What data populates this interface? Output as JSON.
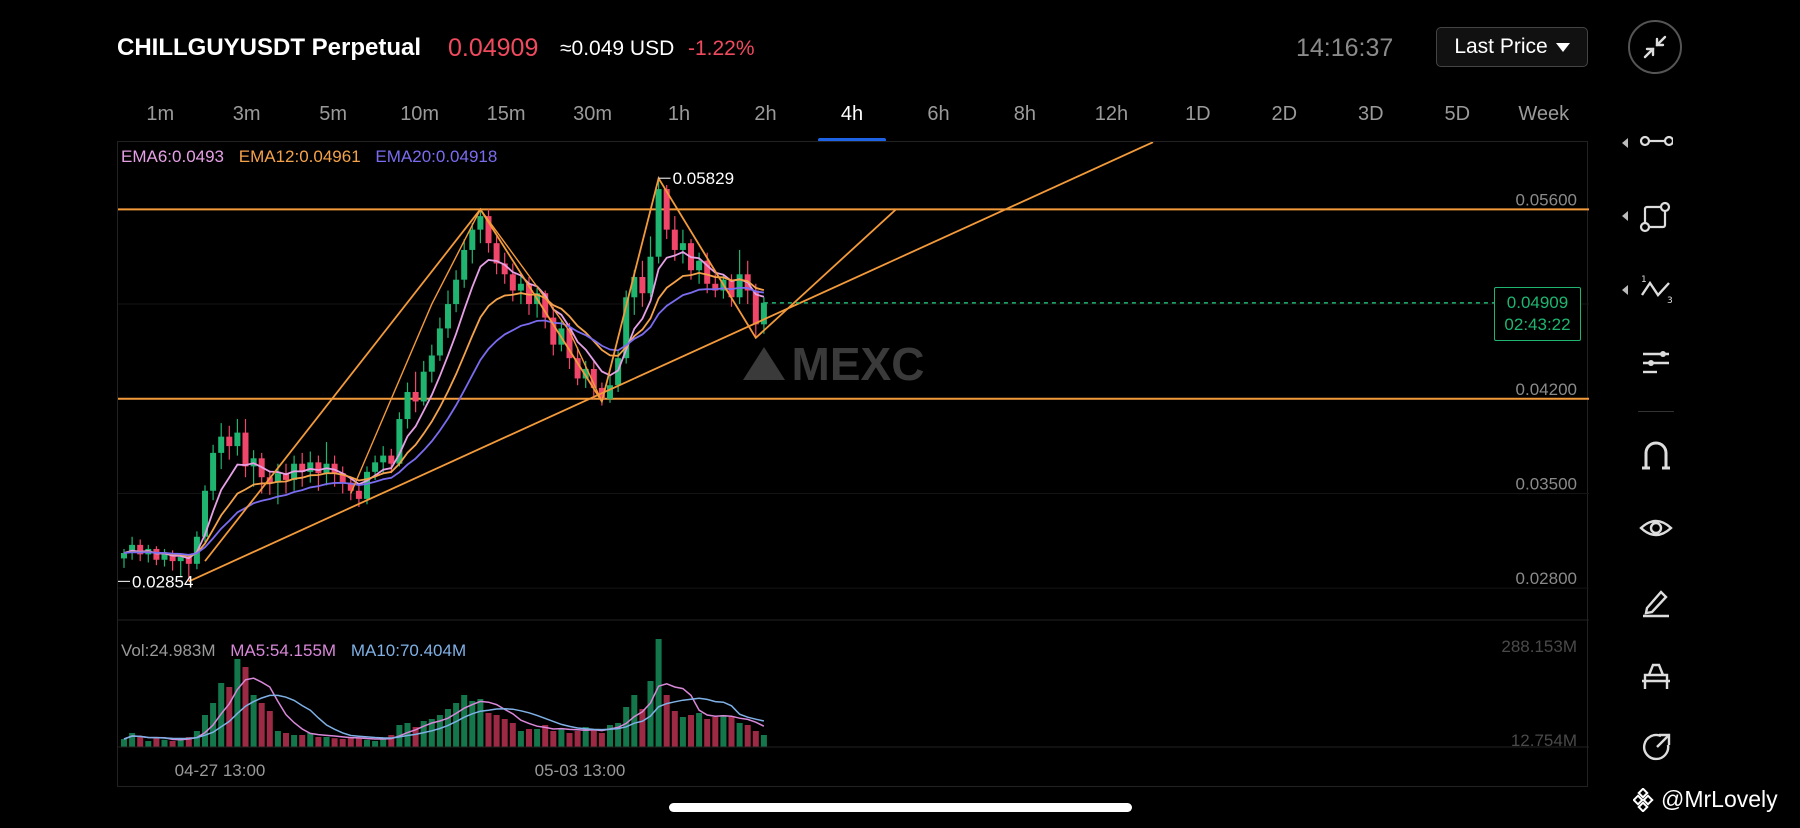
{
  "header": {
    "symbol_title": "CHILLGUYUSDT Perpetual",
    "last_price": "0.04909",
    "usd_approx": "≈0.049 USD",
    "change_pct": "-1.22%",
    "clock": "14:16:37",
    "price_type_label": "Last Price",
    "collapse_icon": "collapse-arrows-icon"
  },
  "timeframes": [
    "1m",
    "3m",
    "5m",
    "10m",
    "15m",
    "30m",
    "1h",
    "2h",
    "4h",
    "6h",
    "8h",
    "12h",
    "1D",
    "2D",
    "3D",
    "5D",
    "Week"
  ],
  "active_timeframe": "4h",
  "indicators": {
    "ema6": "EMA6:0.0493",
    "ema12": "EMA12:0.04961",
    "ema20": "EMA20:0.04918",
    "vol": "Vol:24.983M",
    "ma5": "MA5:54.155M",
    "ma10": "MA10:70.404M"
  },
  "colors": {
    "up": "#1fb571",
    "down": "#f0466a",
    "ema6": "#e6a0e6",
    "ema12": "#f5a34b",
    "ema20": "#7a6cf0",
    "drawing": "#f39a3a",
    "price_line": "#1fb571",
    "ma5": "#d988d9",
    "ma10": "#7fb1e6"
  },
  "chart_data": {
    "type": "candlestick",
    "price_axis_ticks": [
      "0.05600",
      "0.04200",
      "0.03500",
      "0.02800"
    ],
    "time_axis_ticks": [
      "04-27 13:00",
      "05-03 13:00"
    ],
    "high_marker": "0.05829",
    "low_marker": "0.02854",
    "current_price_tag": "0.04909",
    "countdown": "02:43:22",
    "volume_axis_ticks": [
      "288.153M",
      "12.754M"
    ],
    "ylim": [
      0.0255,
      0.0595
    ],
    "horizontal_levels": [
      0.056,
      0.042
    ],
    "watermark": "MEXC",
    "candles": [
      [
        0.0302,
        0.0306,
        0.0295,
        0.0309
      ],
      [
        0.0306,
        0.0312,
        0.0301,
        0.0318
      ],
      [
        0.0312,
        0.0305,
        0.03,
        0.0316
      ],
      [
        0.0305,
        0.0309,
        0.0299,
        0.0312
      ],
      [
        0.0309,
        0.0301,
        0.0297,
        0.0311
      ],
      [
        0.0301,
        0.0306,
        0.0296,
        0.0309
      ],
      [
        0.0306,
        0.03,
        0.0293,
        0.0308
      ],
      [
        0.03,
        0.0303,
        0.0289,
        0.0306
      ],
      [
        0.0303,
        0.0298,
        0.0285,
        0.0305
      ],
      [
        0.0298,
        0.0318,
        0.0294,
        0.0322
      ],
      [
        0.0318,
        0.0352,
        0.0314,
        0.0356
      ],
      [
        0.0352,
        0.038,
        0.0345,
        0.0386
      ],
      [
        0.038,
        0.0392,
        0.0368,
        0.0402
      ],
      [
        0.0392,
        0.0385,
        0.0375,
        0.04
      ],
      [
        0.0385,
        0.0395,
        0.0378,
        0.0405
      ],
      [
        0.0395,
        0.037,
        0.0362,
        0.0405
      ],
      [
        0.037,
        0.0376,
        0.0355,
        0.0382
      ],
      [
        0.0376,
        0.0362,
        0.035,
        0.038
      ],
      [
        0.0362,
        0.0358,
        0.0349,
        0.0367
      ],
      [
        0.0358,
        0.0365,
        0.0342,
        0.0372
      ],
      [
        0.0365,
        0.036,
        0.035,
        0.0372
      ],
      [
        0.036,
        0.0372,
        0.0352,
        0.0378
      ],
      [
        0.0372,
        0.0366,
        0.0355,
        0.038
      ],
      [
        0.0366,
        0.0373,
        0.0358,
        0.0381
      ],
      [
        0.0373,
        0.0365,
        0.0352,
        0.0378
      ],
      [
        0.0365,
        0.0372,
        0.0356,
        0.0388
      ],
      [
        0.0372,
        0.0365,
        0.0355,
        0.0378
      ],
      [
        0.0365,
        0.0358,
        0.035,
        0.037
      ],
      [
        0.0358,
        0.0352,
        0.0345,
        0.0362
      ],
      [
        0.0352,
        0.0346,
        0.034,
        0.0356
      ],
      [
        0.0346,
        0.0366,
        0.0342,
        0.037
      ],
      [
        0.0366,
        0.0373,
        0.036,
        0.0378
      ],
      [
        0.0373,
        0.0378,
        0.0365,
        0.0385
      ],
      [
        0.0378,
        0.0372,
        0.0365,
        0.0383
      ],
      [
        0.0372,
        0.0405,
        0.037,
        0.041
      ],
      [
        0.0405,
        0.0425,
        0.0398,
        0.0432
      ],
      [
        0.0425,
        0.0418,
        0.041,
        0.044
      ],
      [
        0.0418,
        0.044,
        0.0415,
        0.0448
      ],
      [
        0.044,
        0.0452,
        0.0432,
        0.046
      ],
      [
        0.0452,
        0.0472,
        0.0448,
        0.048
      ],
      [
        0.0472,
        0.049,
        0.0465,
        0.05
      ],
      [
        0.049,
        0.0508,
        0.0484,
        0.0515
      ],
      [
        0.0508,
        0.053,
        0.0502,
        0.0538
      ],
      [
        0.053,
        0.0545,
        0.052,
        0.055
      ],
      [
        0.0545,
        0.0555,
        0.0535,
        0.056
      ],
      [
        0.0555,
        0.0535,
        0.0528,
        0.056
      ],
      [
        0.0535,
        0.052,
        0.0512,
        0.054
      ],
      [
        0.052,
        0.0512,
        0.0505,
        0.0528
      ],
      [
        0.0512,
        0.05,
        0.0492,
        0.052
      ],
      [
        0.05,
        0.0505,
        0.049,
        0.0512
      ],
      [
        0.0505,
        0.049,
        0.0482,
        0.051
      ],
      [
        0.049,
        0.0498,
        0.048,
        0.0502
      ],
      [
        0.0498,
        0.048,
        0.0472,
        0.05
      ],
      [
        0.048,
        0.046,
        0.0452,
        0.0488
      ],
      [
        0.046,
        0.0472,
        0.0455,
        0.0478
      ],
      [
        0.0472,
        0.045,
        0.0442,
        0.0476
      ],
      [
        0.045,
        0.0435,
        0.043,
        0.0458
      ],
      [
        0.0435,
        0.0442,
        0.0428,
        0.0448
      ],
      [
        0.0442,
        0.0428,
        0.042,
        0.0448
      ],
      [
        0.0428,
        0.042,
        0.0415,
        0.0432
      ],
      [
        0.042,
        0.043,
        0.0417,
        0.0438
      ],
      [
        0.043,
        0.045,
        0.0425,
        0.0455
      ],
      [
        0.045,
        0.0495,
        0.0446,
        0.05
      ],
      [
        0.0495,
        0.051,
        0.0482,
        0.0515
      ],
      [
        0.051,
        0.0498,
        0.0488,
        0.0522
      ],
      [
        0.0498,
        0.0525,
        0.0495,
        0.054
      ],
      [
        0.0525,
        0.0575,
        0.052,
        0.0583
      ],
      [
        0.0575,
        0.0545,
        0.0538,
        0.0578
      ],
      [
        0.0545,
        0.053,
        0.0522,
        0.0555
      ],
      [
        0.053,
        0.0535,
        0.052,
        0.0545
      ],
      [
        0.0535,
        0.0515,
        0.0508,
        0.0538
      ],
      [
        0.0515,
        0.0522,
        0.0505,
        0.0528
      ],
      [
        0.0522,
        0.0505,
        0.0498,
        0.0528
      ],
      [
        0.0505,
        0.05,
        0.0495,
        0.0512
      ],
      [
        0.05,
        0.0508,
        0.0494,
        0.0512
      ],
      [
        0.0508,
        0.0495,
        0.0488,
        0.0512
      ],
      [
        0.0495,
        0.0512,
        0.049,
        0.053
      ],
      [
        0.0512,
        0.05,
        0.049,
        0.0522
      ],
      [
        0.05,
        0.0475,
        0.0465,
        0.0505
      ],
      [
        0.0475,
        0.0491,
        0.0468,
        0.0495
      ]
    ],
    "volumes": [
      20,
      35,
      25,
      15,
      22,
      18,
      15,
      20,
      25,
      40,
      80,
      110,
      160,
      150,
      220,
      200,
      130,
      110,
      90,
      40,
      35,
      30,
      30,
      35,
      25,
      25,
      22,
      20,
      25,
      22,
      18,
      15,
      20,
      30,
      55,
      60,
      50,
      65,
      70,
      80,
      95,
      110,
      130,
      115,
      120,
      85,
      80,
      70,
      60,
      40,
      45,
      45,
      55,
      40,
      45,
      35,
      40,
      50,
      45,
      35,
      55,
      60,
      100,
      130,
      95,
      165,
      270,
      130,
      90,
      75,
      80,
      85,
      70,
      75,
      80,
      75,
      60,
      55,
      40,
      30
    ]
  },
  "toolbar": [
    {
      "icon": "trend-line-icon",
      "has_caret": true
    },
    {
      "icon": "shape-tool-icon",
      "has_caret": true
    },
    {
      "icon": "wave-pattern-icon",
      "has_caret": true
    },
    {
      "icon": "indicator-settings-icon",
      "has_caret": false
    },
    {
      "icon": "magnet-icon",
      "has_caret": false
    },
    {
      "icon": "eye-icon",
      "has_caret": false
    },
    {
      "icon": "pen-edit-icon",
      "has_caret": false
    },
    {
      "icon": "eraser-icon",
      "has_caret": false
    },
    {
      "icon": "share-icon",
      "has_caret": false
    }
  ],
  "footer": {
    "user_tag": "@MrLovely"
  }
}
